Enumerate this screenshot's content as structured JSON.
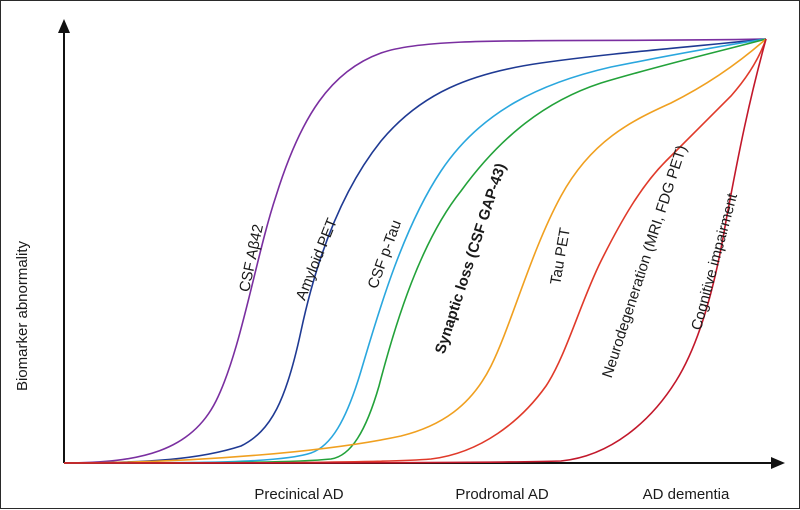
{
  "figure": {
    "y_axis_label": "Biomarker abnormality",
    "x_stages": [
      "Precinical AD",
      "Prodromal AD",
      "AD dementia"
    ]
  },
  "curves": [
    {
      "label": "CSF Aβ42",
      "color": "#7a2fa0",
      "bold": false
    },
    {
      "label": "Amyloid PET",
      "color": "#1f3a93",
      "bold": false
    },
    {
      "label": "CSF p-Tau",
      "color": "#2aa7de",
      "bold": false
    },
    {
      "label": "Synaptic loss (CSF GAP-43)",
      "color": "#23a23a",
      "bold": true
    },
    {
      "label": "Tau PET",
      "color": "#f0a020",
      "bold": false
    },
    {
      "label": "Neurodegeneration (MRI, FDG PET)",
      "color": "#e03a2a",
      "bold": false
    },
    {
      "label": "Cognitive impairment",
      "color": "#c2182b",
      "bold": false
    }
  ]
}
